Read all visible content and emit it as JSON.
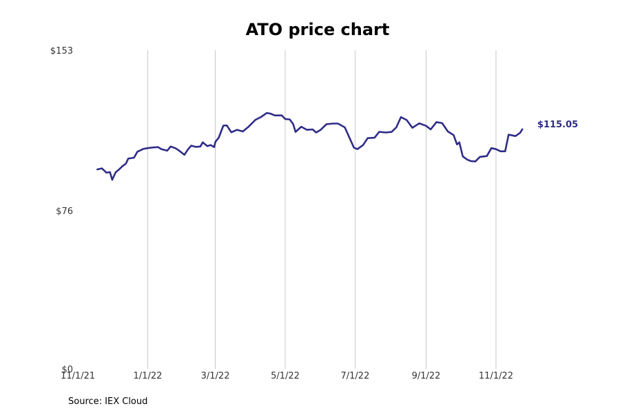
{
  "chart_data": {
    "type": "line",
    "title": "ATO price chart",
    "source": "Source: IEX Cloud",
    "xlabel": "",
    "ylabel": "",
    "grid": "vertical",
    "line_color": "#2e2b87",
    "grid_color": "#c8c8c8",
    "x_ticks": [
      {
        "date": "2021-11-01",
        "label": "11/1/21"
      },
      {
        "date": "2022-01-01",
        "label": "1/1/22"
      },
      {
        "date": "2022-03-01",
        "label": "3/1/22"
      },
      {
        "date": "2022-05-01",
        "label": "5/1/22"
      },
      {
        "date": "2022-07-01",
        "label": "7/1/22"
      },
      {
        "date": "2022-09-01",
        "label": "9/1/22"
      },
      {
        "date": "2022-11-01",
        "label": "11/1/22"
      }
    ],
    "y_ticks": [
      {
        "value": 0,
        "label": "$0"
      },
      {
        "value": 76,
        "label": "$76"
      },
      {
        "value": 153,
        "label": "$153"
      }
    ],
    "xlim": [
      "2021-11-01",
      "2023-01-23"
    ],
    "ylim": [
      0,
      153
    ],
    "last_value_label": "$115.05",
    "series": [
      {
        "values": [
          [
            "2021-11-18",
            95.8
          ],
          [
            "2021-11-22",
            96.3
          ],
          [
            "2021-11-26",
            94.2
          ],
          [
            "2021-11-29",
            94.5
          ],
          [
            "2021-12-01",
            90.8
          ],
          [
            "2021-12-04",
            94.4
          ],
          [
            "2021-12-07",
            95.8
          ],
          [
            "2021-12-10",
            97.4
          ],
          [
            "2021-12-13",
            98.6
          ],
          [
            "2021-12-15",
            101.0
          ],
          [
            "2021-12-20",
            101.4
          ],
          [
            "2021-12-23",
            104.3
          ],
          [
            "2021-12-28",
            105.6
          ],
          [
            "2022-01-01",
            106.0
          ],
          [
            "2022-01-05",
            106.3
          ],
          [
            "2022-01-10",
            106.5
          ],
          [
            "2022-01-13",
            105.5
          ],
          [
            "2022-01-18",
            104.8
          ],
          [
            "2022-01-21",
            106.8
          ],
          [
            "2022-01-25",
            106.0
          ],
          [
            "2022-01-28",
            105.0
          ],
          [
            "2022-02-02",
            102.8
          ],
          [
            "2022-02-05",
            105.3
          ],
          [
            "2022-02-08",
            107.2
          ],
          [
            "2022-02-12",
            106.6
          ],
          [
            "2022-02-16",
            106.8
          ],
          [
            "2022-02-18",
            108.8
          ],
          [
            "2022-02-22",
            107.0
          ],
          [
            "2022-02-25",
            107.5
          ],
          [
            "2022-02-28",
            106.5
          ],
          [
            "2022-03-01",
            109.0
          ],
          [
            "2022-03-04",
            111.0
          ],
          [
            "2022-03-08",
            116.8
          ],
          [
            "2022-03-11",
            116.9
          ],
          [
            "2022-03-15",
            113.6
          ],
          [
            "2022-03-20",
            114.8
          ],
          [
            "2022-03-25",
            114.0
          ],
          [
            "2022-03-30",
            116.3
          ],
          [
            "2022-04-05",
            119.6
          ],
          [
            "2022-04-10",
            121.0
          ],
          [
            "2022-04-15",
            122.9
          ],
          [
            "2022-04-18",
            122.6
          ],
          [
            "2022-04-22",
            121.7
          ],
          [
            "2022-04-28",
            121.7
          ],
          [
            "2022-05-01",
            120.0
          ],
          [
            "2022-05-05",
            119.8
          ],
          [
            "2022-05-08",
            117.5
          ],
          [
            "2022-05-10",
            113.8
          ],
          [
            "2022-05-15",
            116.3
          ],
          [
            "2022-05-20",
            114.8
          ],
          [
            "2022-05-25",
            115.0
          ],
          [
            "2022-05-28",
            113.5
          ],
          [
            "2022-06-01",
            114.8
          ],
          [
            "2022-06-06",
            117.5
          ],
          [
            "2022-06-12",
            117.8
          ],
          [
            "2022-06-16",
            117.8
          ],
          [
            "2022-06-22",
            116.0
          ],
          [
            "2022-06-30",
            106.2
          ],
          [
            "2022-07-03",
            105.5
          ],
          [
            "2022-07-08",
            107.5
          ],
          [
            "2022-07-12",
            110.8
          ],
          [
            "2022-07-18",
            111.0
          ],
          [
            "2022-07-22",
            113.8
          ],
          [
            "2022-07-28",
            113.5
          ],
          [
            "2022-08-02",
            113.8
          ],
          [
            "2022-08-06",
            116.0
          ],
          [
            "2022-08-10",
            120.9
          ],
          [
            "2022-08-15",
            119.5
          ],
          [
            "2022-08-20",
            115.8
          ],
          [
            "2022-08-26",
            117.9
          ],
          [
            "2022-09-01",
            116.7
          ],
          [
            "2022-09-05",
            115.0
          ],
          [
            "2022-09-10",
            118.5
          ],
          [
            "2022-09-15",
            118.0
          ],
          [
            "2022-09-20",
            114.0
          ],
          [
            "2022-09-25",
            112.3
          ],
          [
            "2022-09-28",
            107.8
          ],
          [
            "2022-09-30",
            108.8
          ],
          [
            "2022-10-03",
            102.0
          ],
          [
            "2022-10-07",
            100.5
          ],
          [
            "2022-10-10",
            99.8
          ],
          [
            "2022-10-14",
            99.6
          ],
          [
            "2022-10-18",
            101.8
          ],
          [
            "2022-10-24",
            102.2
          ],
          [
            "2022-10-28",
            106.0
          ],
          [
            "2022-11-01",
            105.5
          ],
          [
            "2022-11-05",
            104.5
          ],
          [
            "2022-11-09",
            104.5
          ],
          [
            "2022-11-12",
            112.5
          ],
          [
            "2022-11-18",
            111.8
          ],
          [
            "2022-11-22",
            113.3
          ],
          [
            "2022-11-24",
            115.05
          ]
        ]
      }
    ]
  }
}
